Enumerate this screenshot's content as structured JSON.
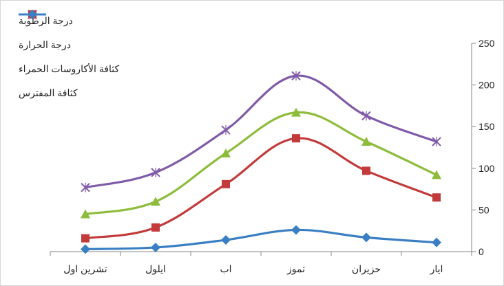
{
  "chart_data": {
    "type": "line",
    "categories": [
      "تشرين اول",
      "ايلول",
      "اب",
      "تموز",
      "حزيران",
      "ايار"
    ],
    "yticks": [
      "0",
      "50",
      "100",
      "150",
      "200",
      "250"
    ],
    "ylim": [
      0,
      250
    ],
    "grid": false,
    "legend_position": "top-left",
    "axis_position": "right",
    "series": [
      {
        "name": "درجة الرطوبة",
        "color": "#7f5aa8",
        "marker": "x-icon",
        "values": [
          77,
          95,
          146,
          211,
          163,
          132
        ]
      },
      {
        "name": "درجة الحرارة",
        "color": "#8dbc3b",
        "marker": "triangle-icon",
        "values": [
          45,
          60,
          118,
          167,
          132,
          92
        ]
      },
      {
        "name": "كثافة الأكاروسات الحمراء",
        "color": "#c23a3a",
        "marker": "square-icon",
        "values": [
          16,
          29,
          81,
          136,
          97,
          65
        ]
      },
      {
        "name": "كثافة المفترس",
        "color": "#3a7fc3",
        "marker": "diamond-icon",
        "values": [
          3,
          5,
          14,
          26,
          17,
          11
        ]
      }
    ]
  }
}
